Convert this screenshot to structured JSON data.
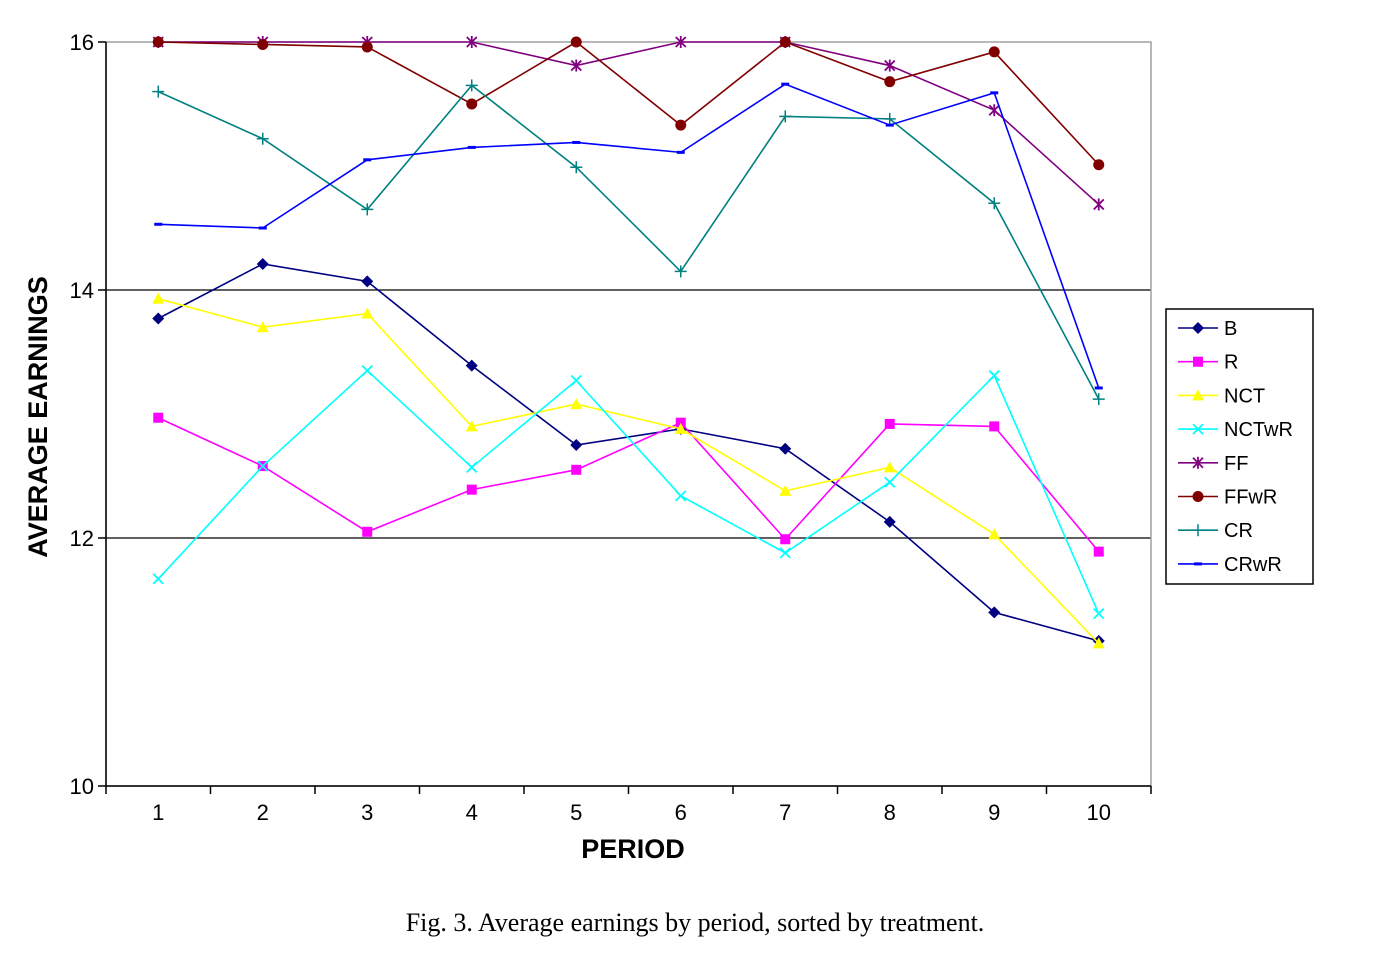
{
  "caption": "Fig. 3.  Average earnings by period, sorted by treatment.",
  "chart_data": {
    "type": "line",
    "title": "",
    "xlabel": "PERIOD",
    "ylabel": "AVERAGE EARNINGS",
    "categories": [
      "1",
      "2",
      "3",
      "4",
      "5",
      "6",
      "7",
      "8",
      "9",
      "10"
    ],
    "ylim": [
      10,
      16
    ],
    "yticks": [
      10,
      12,
      14,
      16
    ],
    "grid": "horizontal major lines",
    "legend_position": "right",
    "series": [
      {
        "name": "B",
        "color": "#000080",
        "marker": "diamond",
        "values": [
          13.77,
          14.21,
          14.07,
          13.39,
          12.75,
          12.88,
          12.72,
          12.13,
          11.4,
          11.17
        ]
      },
      {
        "name": "R",
        "color": "#ff00ff",
        "marker": "square",
        "values": [
          12.97,
          12.58,
          12.05,
          12.39,
          12.55,
          12.93,
          11.99,
          12.92,
          12.9,
          11.89
        ]
      },
      {
        "name": "NCT",
        "color": "#ffff00",
        "marker": "triangle",
        "values": [
          13.93,
          13.7,
          13.81,
          12.9,
          13.08,
          12.88,
          12.38,
          12.57,
          12.03,
          11.15
        ]
      },
      {
        "name": "NCTwR",
        "color": "#00ffff",
        "marker": "x",
        "values": [
          11.67,
          12.58,
          13.35,
          12.57,
          13.27,
          12.34,
          11.88,
          12.45,
          13.31,
          11.39
        ]
      },
      {
        "name": "FF",
        "color": "#800080",
        "marker": "star",
        "values": [
          16.0,
          16.0,
          16.0,
          16.0,
          15.81,
          16.0,
          16.0,
          15.81,
          15.45,
          14.69
        ]
      },
      {
        "name": "FFwR",
        "color": "#800000",
        "marker": "circle",
        "values": [
          16.0,
          15.98,
          15.96,
          15.5,
          16.0,
          15.33,
          16.0,
          15.68,
          15.92,
          15.01
        ]
      },
      {
        "name": "CR",
        "color": "#008080",
        "marker": "plus",
        "values": [
          15.6,
          15.22,
          14.65,
          15.65,
          14.99,
          14.15,
          15.4,
          15.38,
          14.7,
          13.12
        ]
      },
      {
        "name": "CRwR",
        "color": "#0000ff",
        "marker": "dash",
        "values": [
          14.53,
          14.5,
          15.05,
          15.15,
          15.19,
          15.11,
          15.66,
          15.33,
          15.59,
          13.21
        ]
      }
    ]
  }
}
